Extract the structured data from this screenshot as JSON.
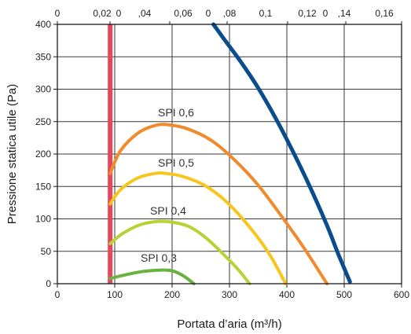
{
  "chart_data": {
    "type": "line",
    "xlabel": "Portata d’aria (m³/h)",
    "ylabel": "Pressione statica utile (Pa)",
    "xlim": [
      0,
      600
    ],
    "ylim": [
      0,
      400
    ],
    "x_ticks": [
      "0",
      "100",
      "200",
      "300",
      "400",
      "500",
      "600"
    ],
    "y_ticks": [
      "0",
      "50",
      "100",
      "150",
      "200",
      "250",
      "300",
      "350",
      "400"
    ],
    "top_axis_ticks": [
      "0",
      "0,02",
      "0",
      ",04",
      "0,06",
      "0",
      ",08",
      "0,1",
      "0,12",
      "0",
      ",14",
      "0,16"
    ],
    "grid": true,
    "limit_line": {
      "x": 92,
      "color": "#e8475b"
    },
    "series": [
      {
        "name": "SPI 0,6",
        "color": "#f08a2c",
        "x": [
          92,
          110,
          140,
          170,
          195,
          230,
          270,
          310,
          350,
          390,
          430,
          470
        ],
        "y": [
          170,
          205,
          232,
          244,
          245,
          238,
          220,
          190,
          152,
          105,
          55,
          0
        ]
      },
      {
        "name": "SPI 0,5",
        "color": "#f7c51c",
        "x": [
          92,
          110,
          140,
          170,
          190,
          220,
          260,
          300,
          340,
          370,
          398
        ],
        "y": [
          123,
          145,
          163,
          170,
          170,
          165,
          150,
          122,
          82,
          45,
          0
        ]
      },
      {
        "name": "SPI 0,4",
        "color": "#b6d235",
        "x": [
          92,
          115,
          145,
          175,
          200,
          230,
          260,
          290,
          315,
          335
        ],
        "y": [
          62,
          78,
          91,
          96,
          95,
          88,
          70,
          45,
          22,
          0
        ]
      },
      {
        "name": "SPI 0,3",
        "color": "#6ab13f",
        "x": [
          92,
          120,
          150,
          180,
          200,
          220,
          238
        ],
        "y": [
          8,
          14,
          19,
          21,
          20,
          12,
          0
        ]
      },
      {
        "name": "",
        "color": "#0a4d8c",
        "x": [
          272,
          290,
          320,
          350,
          380,
          410,
          440,
          470,
          490,
          510
        ],
        "y": [
          400,
          378,
          342,
          302,
          256,
          205,
          150,
          90,
          45,
          3
        ]
      }
    ]
  }
}
